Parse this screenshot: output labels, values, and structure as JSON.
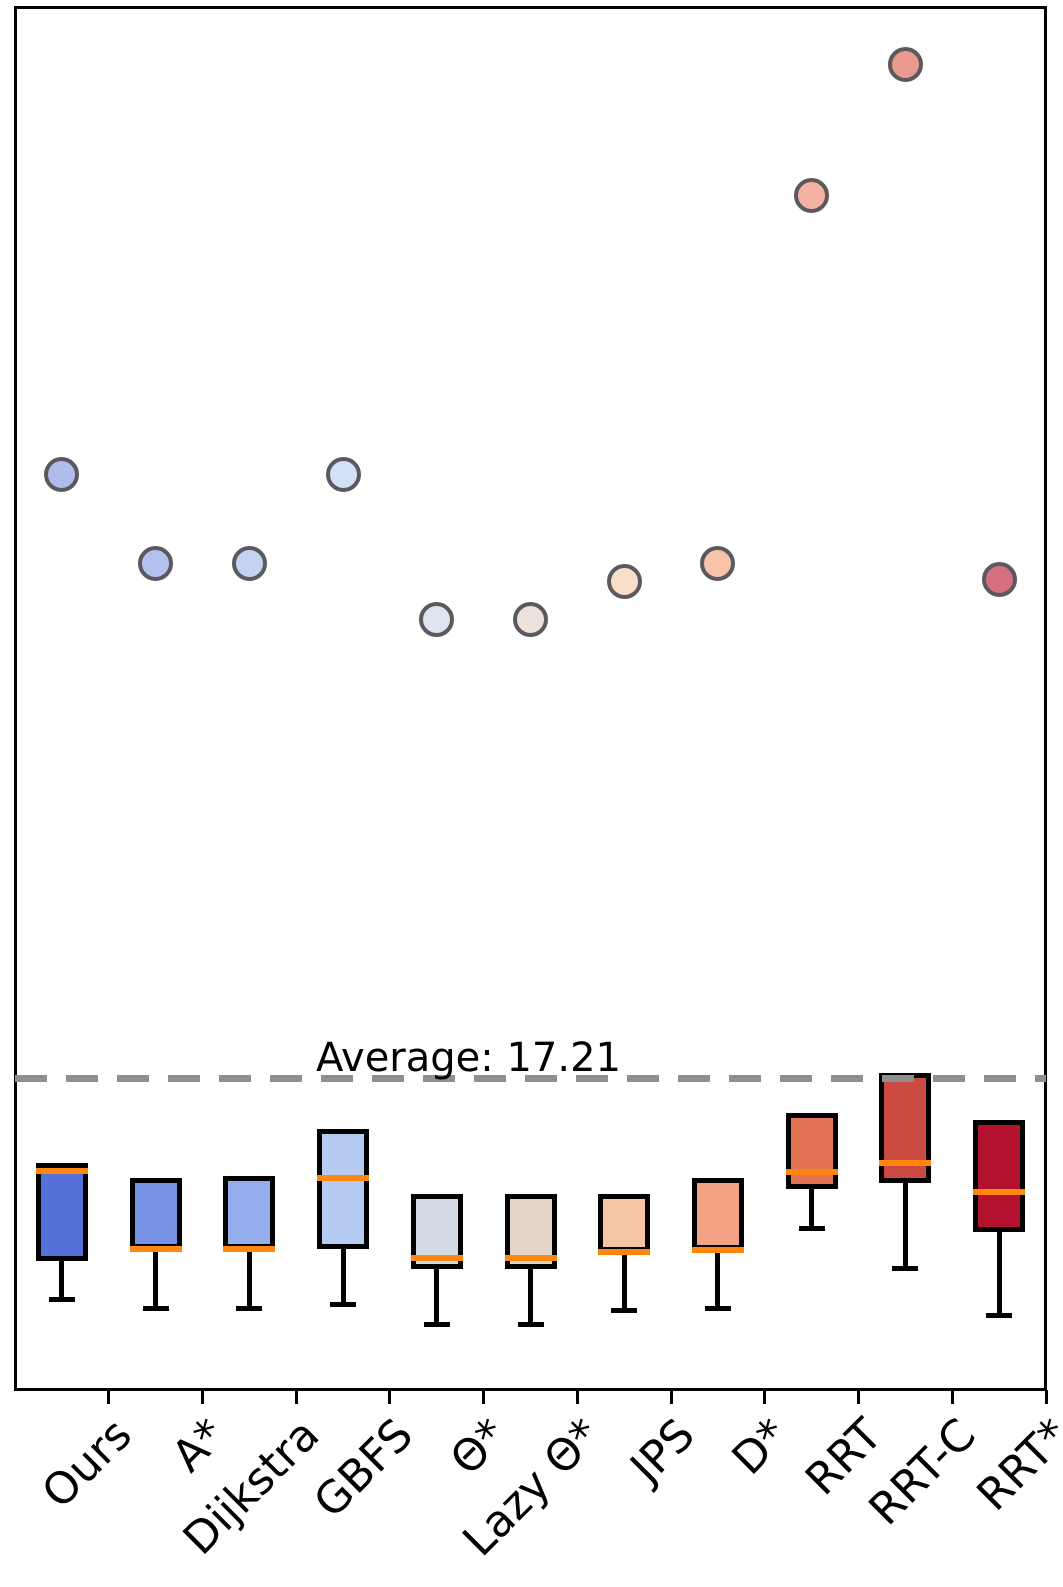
{
  "chart_data": {
    "type": "box",
    "title": "",
    "xlabel": "",
    "ylabel": "",
    "grid": false,
    "legend": null,
    "y_axis_ticks": "none",
    "ylim": [
      0,
      76
    ],
    "categories": [
      "Ours",
      "A*",
      "Dijkstra",
      "GBFS",
      "Θ*",
      "Lazy Θ*",
      "JPS",
      "D*",
      "RRT",
      "RRT-C",
      "RRT*"
    ],
    "average_line": {
      "value": 17.21,
      "label": "Average: 17.21",
      "style": "dashed",
      "color": "#8f8f8f"
    },
    "style": {
      "median_color": "#ff870f",
      "box_edge_color": "#000000",
      "whisker_color": "#000000",
      "point_edge_color": "#5a5a5e",
      "background": "#ffffff"
    },
    "series": [
      {
        "name": "Ours",
        "whisker_low": 5.0,
        "q1": 7.1,
        "median": 12.1,
        "q3": 12.5,
        "whisker_high": 12.5,
        "outlier": 50.5,
        "box_color": "#5571d9",
        "point_color": "#b0bcec"
      },
      {
        "name": "A*",
        "whisker_low": 4.5,
        "q1": 7.8,
        "median": 7.8,
        "q3": 11.7,
        "whisker_high": 11.7,
        "outlier": 45.6,
        "box_color": "#7693e3",
        "point_color": "#b3c1ee"
      },
      {
        "name": "Dijkstra",
        "whisker_low": 4.5,
        "q1": 7.8,
        "median": 7.8,
        "q3": 11.8,
        "whisker_high": 11.8,
        "outlier": 45.6,
        "box_color": "#93aeea",
        "point_color": "#c5d2f2"
      },
      {
        "name": "GBFS",
        "whisker_low": 4.7,
        "q1": 7.8,
        "median": 11.7,
        "q3": 14.4,
        "whisker_high": 14.4,
        "outlier": 50.5,
        "box_color": "#b5cbf1",
        "point_color": "#d3e0f6"
      },
      {
        "name": "Θ*",
        "whisker_low": 3.6,
        "q1": 6.7,
        "median": 7.3,
        "q3": 10.8,
        "whisker_high": 10.8,
        "outlier": 42.5,
        "box_color": "#d3dce6",
        "point_color": "#dde4ed"
      },
      {
        "name": "Lazy Θ*",
        "whisker_low": 3.6,
        "q1": 6.7,
        "median": 7.3,
        "q3": 10.8,
        "whisker_high": 10.8,
        "outlier": 42.5,
        "box_color": "#e2d4c9",
        "point_color": "#ede2da"
      },
      {
        "name": "JPS",
        "whisker_low": 4.4,
        "q1": 7.6,
        "median": 7.6,
        "q3": 10.8,
        "whisker_high": 10.8,
        "outlier": 44.6,
        "box_color": "#f6c5a5",
        "point_color": "#f8ddc8"
      },
      {
        "name": "D*",
        "whisker_low": 4.5,
        "q1": 7.7,
        "median": 7.7,
        "q3": 11.7,
        "whisker_high": 11.7,
        "outlier": 45.6,
        "box_color": "#f3a283",
        "point_color": "#f7c3ab"
      },
      {
        "name": "RRT",
        "whisker_low": 8.9,
        "q1": 11.1,
        "median": 12.0,
        "q3": 15.3,
        "whisker_high": 15.3,
        "outlier": 65.9,
        "box_color": "#e57457",
        "point_color": "#f4b3a2"
      },
      {
        "name": "RRT-C",
        "whisker_low": 6.7,
        "q1": 11.4,
        "median": 12.5,
        "q3": 17.5,
        "whisker_high": 17.5,
        "outlier": 73.1,
        "box_color": "#cb4b42",
        "point_color": "#e89a8d"
      },
      {
        "name": "RRT*",
        "whisker_low": 4.1,
        "q1": 8.7,
        "median": 10.9,
        "q3": 14.9,
        "whisker_high": 14.9,
        "outlier": 44.7,
        "box_color": "#b2122e",
        "point_color": "#d6707f"
      }
    ]
  }
}
